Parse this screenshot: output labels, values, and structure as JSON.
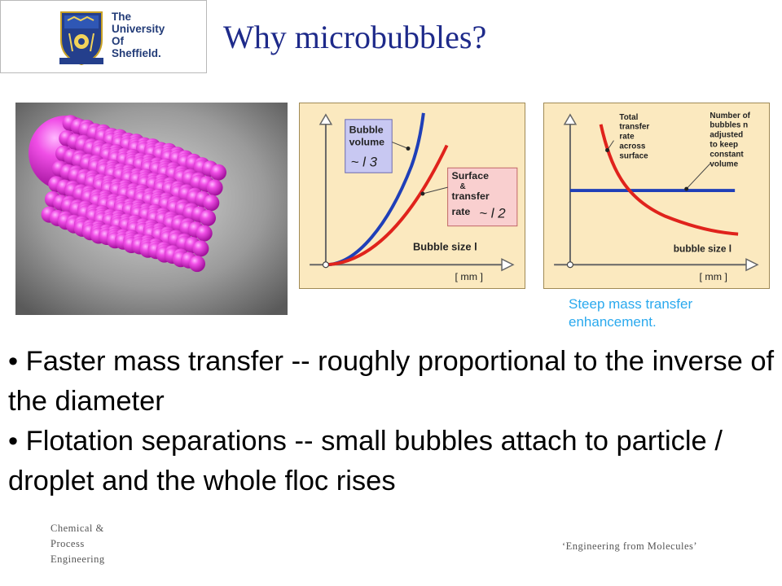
{
  "logo": {
    "lines": [
      "The",
      "University",
      "Of",
      "Sheffield."
    ]
  },
  "title": "Why microbubbles?",
  "graph1": {
    "bubble_volume_label": [
      "Bubble",
      "volume"
    ],
    "bubble_volume_formula": "~ l 3",
    "surface_label": [
      "Surface",
      "&",
      "transfer",
      "rate"
    ],
    "surface_formula": "~ l 2",
    "xaxis_label": "Bubble size l",
    "units": "[ mm ]"
  },
  "graph2": {
    "total_label": [
      "Total",
      "transfer",
      "rate",
      "across",
      "surface"
    ],
    "number_label": [
      "Number of",
      "bubbles n",
      "adjusted",
      "to keep",
      "constant",
      "volume"
    ],
    "xaxis_label": "bubble size l",
    "units": "[ mm ]"
  },
  "caption": "Steep mass transfer enhancement.",
  "bullets": [
    "• Faster mass transfer  --  roughly proportional to the inverse of the diameter",
    "• Flotation separations  --   small bubbles attach to particle / droplet and the whole floc rises"
  ],
  "footer": {
    "department": [
      "Chemical &",
      "Process",
      "Engineering"
    ],
    "tagline": "‘Engineering from Molecules’"
  },
  "colors": {
    "title": "#1e2a8a",
    "caption": "#2aa9ee",
    "graph_bg": "#fbe9bf",
    "volume_curve": "#1f3fb8",
    "surface_curve": "#e0231c",
    "sphere": "#e02ad4"
  }
}
